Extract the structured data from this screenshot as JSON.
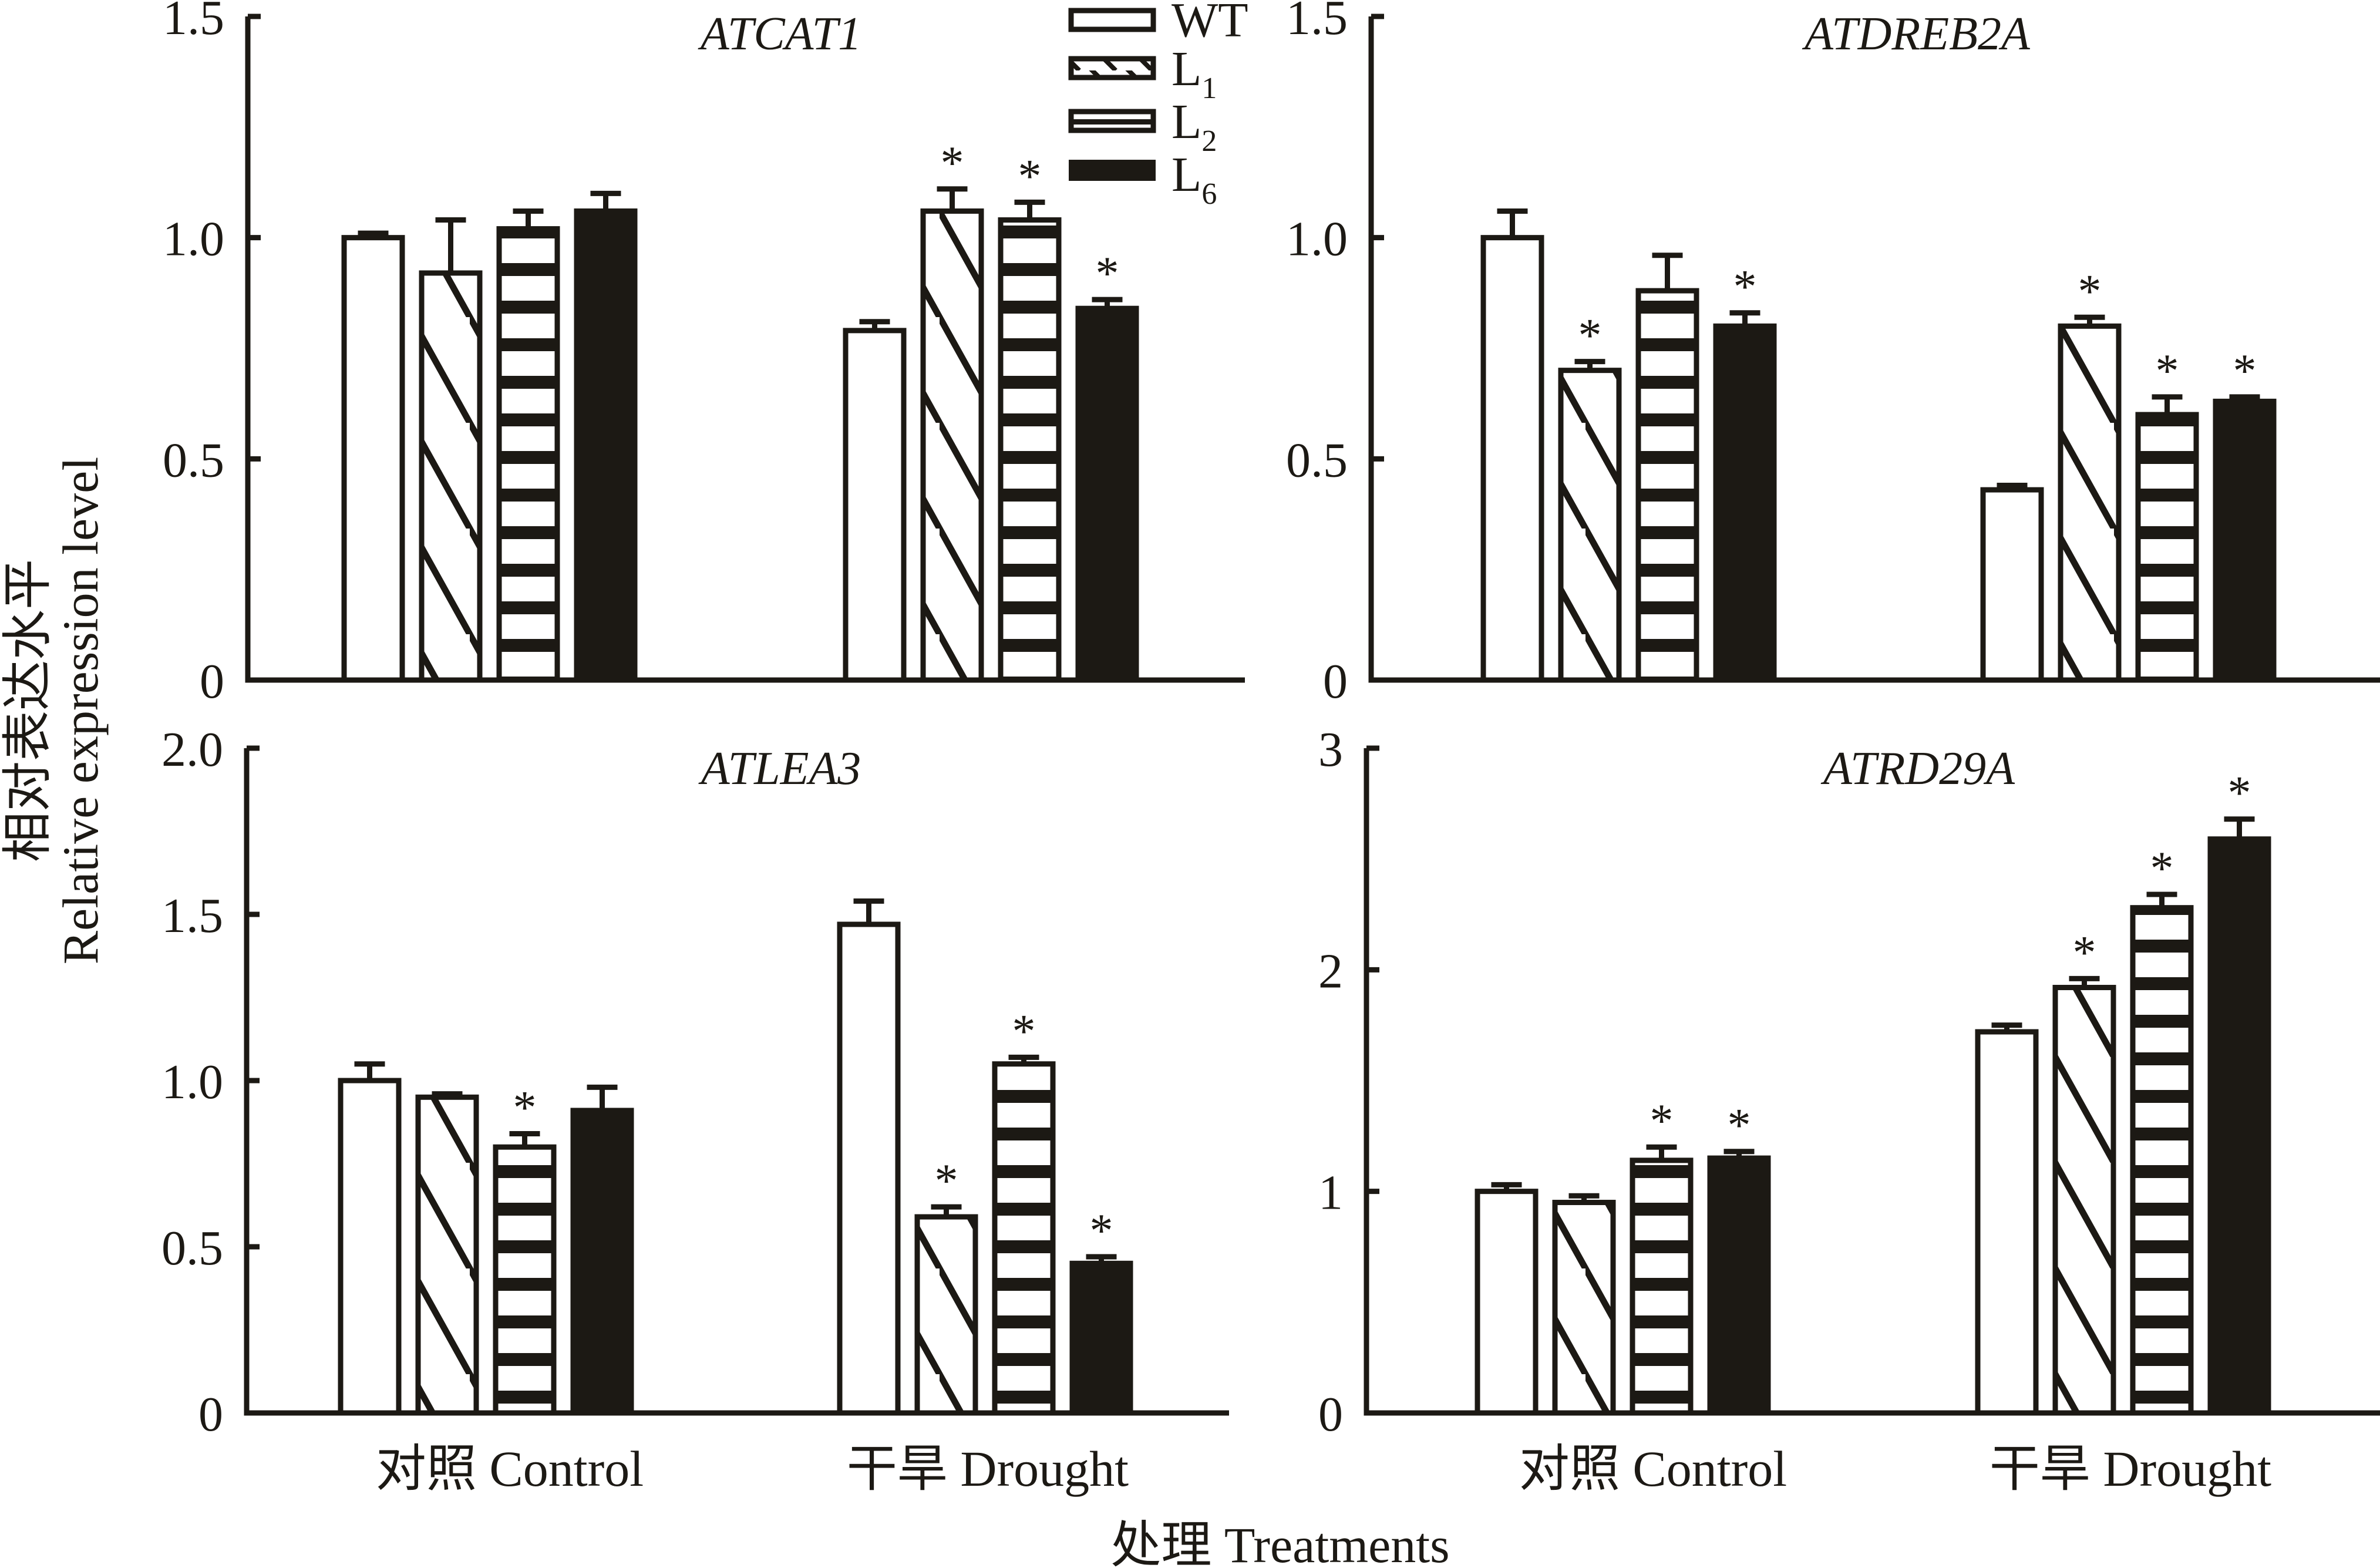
{
  "chart_data": {
    "type": "bar",
    "layout": "2x2 grouped bar panels",
    "xlabel": "处理 Treatments",
    "ylabel_cn": "相对表达水平",
    "ylabel_en": "Relative expression level",
    "categories": [
      "对照 Control",
      "干旱 Drought"
    ],
    "legend": {
      "position": "top-center",
      "entries": [
        {
          "name": "WT",
          "sub": "",
          "pattern": "open"
        },
        {
          "name": "L",
          "sub": "1",
          "pattern": "diagonal"
        },
        {
          "name": "L",
          "sub": "2",
          "pattern": "horizontal"
        },
        {
          "name": "L",
          "sub": "6",
          "pattern": "solid"
        }
      ]
    },
    "significance_marker": "*",
    "error_bars": "upper only (SE)",
    "grid": false,
    "panels": [
      {
        "title": "ATCAT1",
        "ylim": [
          0,
          1.5
        ],
        "yticks": [
          "0",
          "0.5",
          "1.0",
          "1.5"
        ],
        "ytick_values": [
          0,
          0.5,
          1.0,
          1.5
        ],
        "series": [
          {
            "name": "WT",
            "values": [
              1.0,
              0.79
            ],
            "errors": [
              0.01,
              0.02
            ],
            "significant": [
              false,
              false
            ]
          },
          {
            "name": "L1",
            "values": [
              0.92,
              1.06
            ],
            "errors": [
              0.12,
              0.05
            ],
            "significant": [
              false,
              true
            ]
          },
          {
            "name": "L2",
            "values": [
              1.02,
              1.04
            ],
            "errors": [
              0.04,
              0.04
            ],
            "significant": [
              false,
              true
            ]
          },
          {
            "name": "L6",
            "values": [
              1.06,
              0.84
            ],
            "errors": [
              0.04,
              0.02
            ],
            "significant": [
              false,
              true
            ]
          }
        ]
      },
      {
        "title": "ATDREB2A",
        "ylim": [
          0,
          1.5
        ],
        "yticks": [
          "0",
          "0.5",
          "1.0",
          "1.5"
        ],
        "ytick_values": [
          0,
          0.5,
          1.0,
          1.5
        ],
        "series": [
          {
            "name": "WT",
            "values": [
              1.0,
              0.43
            ],
            "errors": [
              0.06,
              0.01
            ],
            "significant": [
              false,
              false
            ]
          },
          {
            "name": "L1",
            "values": [
              0.7,
              0.8
            ],
            "errors": [
              0.02,
              0.02
            ],
            "significant": [
              true,
              true
            ]
          },
          {
            "name": "L2",
            "values": [
              0.88,
              0.6
            ],
            "errors": [
              0.08,
              0.04
            ],
            "significant": [
              false,
              true
            ]
          },
          {
            "name": "L6",
            "values": [
              0.8,
              0.63
            ],
            "errors": [
              0.03,
              0.01
            ],
            "significant": [
              true,
              true
            ]
          }
        ]
      },
      {
        "title": "ATLEA3",
        "ylim": [
          0,
          2.0
        ],
        "yticks": [
          "0",
          "0.5",
          "1.0",
          "1.5",
          "2.0"
        ],
        "ytick_values": [
          0,
          0.5,
          1.0,
          1.5,
          2.0
        ],
        "series": [
          {
            "name": "WT",
            "values": [
              1.0,
              1.47
            ],
            "errors": [
              0.05,
              0.07
            ],
            "significant": [
              false,
              false
            ]
          },
          {
            "name": "L1",
            "values": [
              0.95,
              0.59
            ],
            "errors": [
              0.01,
              0.03
            ],
            "significant": [
              false,
              true
            ]
          },
          {
            "name": "L2",
            "values": [
              0.8,
              1.05
            ],
            "errors": [
              0.04,
              0.02
            ],
            "significant": [
              true,
              true
            ]
          },
          {
            "name": "L6",
            "values": [
              0.91,
              0.45
            ],
            "errors": [
              0.07,
              0.02
            ],
            "significant": [
              false,
              true
            ]
          }
        ]
      },
      {
        "title": "ATRD29A",
        "ylim": [
          0,
          3
        ],
        "yticks": [
          "0",
          "1",
          "2",
          "3"
        ],
        "ytick_values": [
          0,
          1,
          2,
          3
        ],
        "series": [
          {
            "name": "WT",
            "values": [
              1.0,
              1.72
            ],
            "errors": [
              0.03,
              0.03
            ],
            "significant": [
              false,
              false
            ]
          },
          {
            "name": "L1",
            "values": [
              0.95,
              1.92
            ],
            "errors": [
              0.03,
              0.04
            ],
            "significant": [
              false,
              true
            ]
          },
          {
            "name": "L2",
            "values": [
              1.14,
              2.28
            ],
            "errors": [
              0.06,
              0.06
            ],
            "significant": [
              true,
              true
            ]
          },
          {
            "name": "L6",
            "values": [
              1.15,
              2.59
            ],
            "errors": [
              0.03,
              0.09
            ],
            "significant": [
              true,
              true
            ]
          }
        ]
      }
    ],
    "colors": {
      "ink": "#1c1914",
      "background": "#ffffff"
    }
  }
}
